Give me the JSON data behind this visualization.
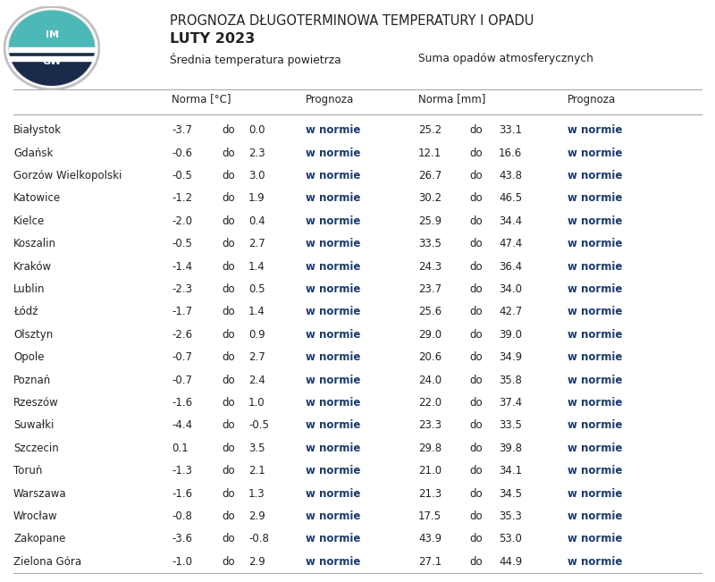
{
  "title_line1": "PROGNOZA DŁUGOTERMINOWA TEMPERATURY I OPADU",
  "title_line2": "LUTY 2023",
  "header_temp": "Średniatempera tura powietrza",
  "header_temp_display": "Średniatempera tura powietrza",
  "header_prec": "Suma opadów atmosferycznych",
  "subheader_norma_temp": "Norma [°C]",
  "subheader_prognoza": "Prognoza",
  "subheader_norma_prec": "Norma [mm]",
  "cities": [
    "Białystok",
    "Gdańsk",
    "Gorzów Wielkopolski",
    "Katowice",
    "Kielce",
    "Koszalin",
    "Kraków",
    "Lublin",
    "Łódź",
    "Olsztyn",
    "Opole",
    "Poznań",
    "Rzeszów",
    "Suwałki",
    "Szczecin",
    "Toruń",
    "Warszawa",
    "Wrocław",
    "Zakopane",
    "Zielona Góra"
  ],
  "temp_low": [
    -3.7,
    -0.6,
    -0.5,
    -1.2,
    -2.0,
    -0.5,
    -1.4,
    -2.3,
    -1.7,
    -2.6,
    -0.7,
    -0.7,
    -1.6,
    -4.4,
    0.1,
    -1.3,
    -1.6,
    -0.8,
    -3.6,
    -1.0
  ],
  "temp_high": [
    0.0,
    2.3,
    3.0,
    1.9,
    0.4,
    2.7,
    1.4,
    0.5,
    1.4,
    0.9,
    2.7,
    2.4,
    1.0,
    -0.5,
    3.5,
    2.1,
    1.3,
    2.9,
    -0.8,
    2.9
  ],
  "temp_prognoza": [
    "w normie",
    "w normie",
    "w normie",
    "w normie",
    "w normie",
    "w normie",
    "w normie",
    "w normie",
    "w normie",
    "w normie",
    "w normie",
    "w normie",
    "w normie",
    "w normie",
    "w normie",
    "w normie",
    "w normie",
    "w normie",
    "w normie",
    "w normie"
  ],
  "prec_low": [
    25.2,
    12.1,
    26.7,
    30.2,
    25.9,
    33.5,
    24.3,
    23.7,
    25.6,
    29.0,
    20.6,
    24.0,
    22.0,
    23.3,
    29.8,
    21.0,
    21.3,
    17.5,
    43.9,
    27.1
  ],
  "prec_high": [
    33.1,
    16.6,
    43.8,
    46.5,
    34.4,
    47.4,
    36.4,
    34.0,
    42.7,
    39.0,
    34.9,
    35.8,
    37.4,
    33.5,
    39.8,
    34.1,
    34.5,
    35.3,
    53.0,
    44.9
  ],
  "prec_prognoza": [
    "w normie",
    "w normie",
    "w normie",
    "w normie",
    "w normie",
    "w normie",
    "w normie",
    "w normie",
    "w normie",
    "w normie",
    "w normie",
    "w normie",
    "w normie",
    "w normie",
    "w normie",
    "w normie",
    "w normie",
    "w normie",
    "w normie",
    "w normie"
  ],
  "bg_color": "#ffffff",
  "text_color": "#222222",
  "prognoza_color": "#1a3a6b",
  "line_color": "#aaaaaa",
  "logo_teal": "#4db8b8",
  "logo_navy": "#1a2a4a"
}
